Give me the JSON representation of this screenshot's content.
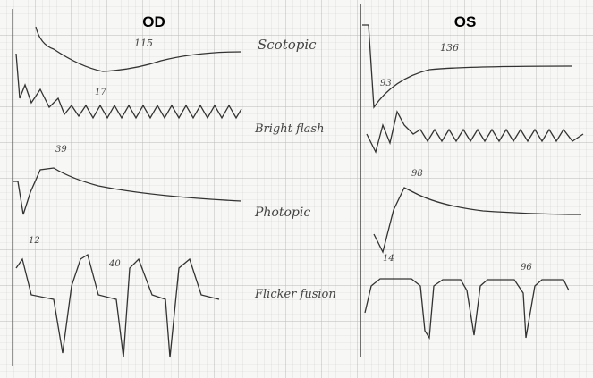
{
  "header": {
    "left_eye": "OD",
    "right_eye": "OS"
  },
  "rows": [
    {
      "label": "Scotopic",
      "od_value": "115",
      "os_value": "136"
    },
    {
      "label": "Bright flash",
      "od_value": "17",
      "os_value": "93"
    },
    {
      "label": "Photopic",
      "od_value": "39",
      "os_value": "98"
    },
    {
      "label": "Flicker fusion",
      "od_value": "40",
      "os_value": "96"
    }
  ],
  "marks": {
    "od_photopic_a": "12",
    "os_photopic_a": "14"
  }
}
